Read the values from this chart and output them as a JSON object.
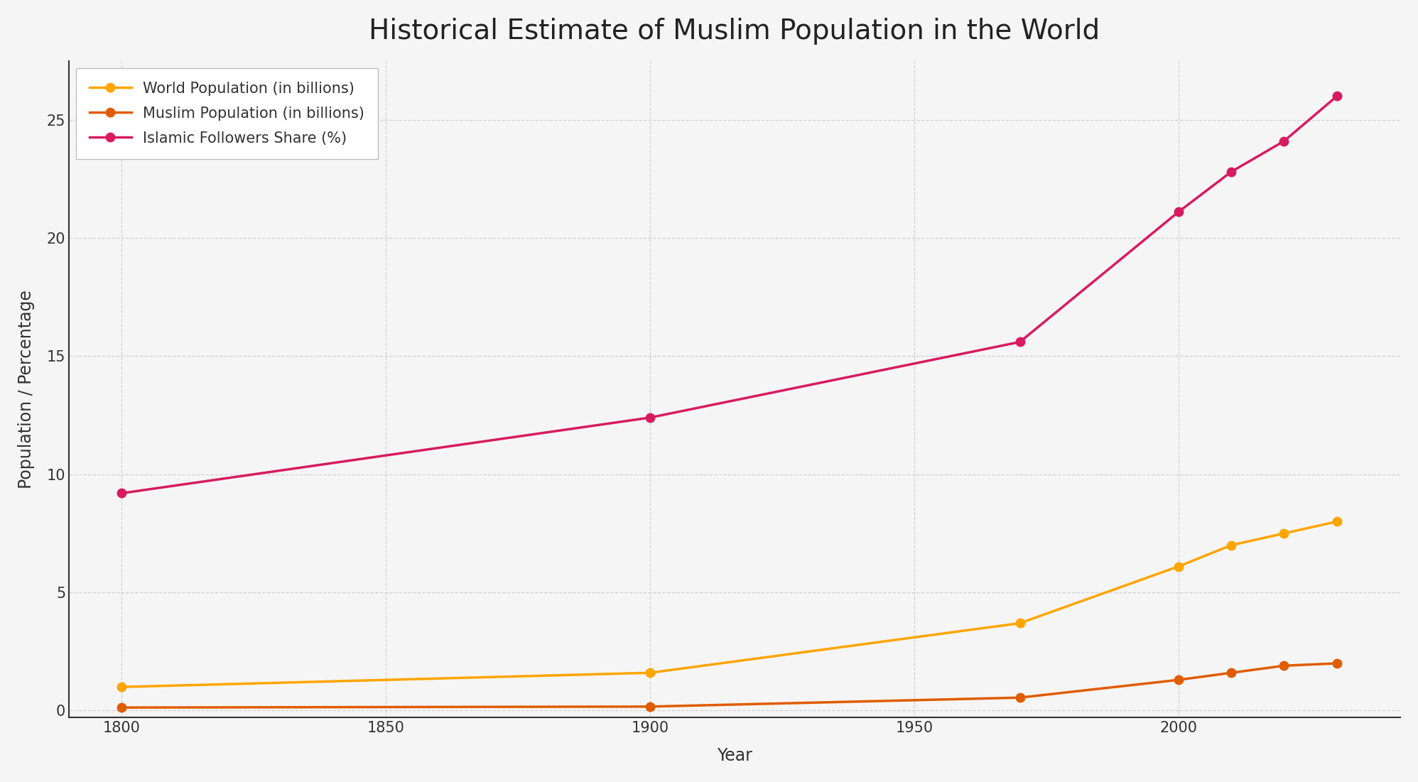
{
  "title": "Historical Estimate of Muslim Population in the World",
  "xlabel": "Year",
  "ylabel": "Population / Percentage",
  "years": [
    1800,
    1900,
    1970,
    2000,
    2010,
    2020,
    2030
  ],
  "world_pop": [
    1.0,
    1.6,
    3.7,
    6.1,
    7.0,
    7.5,
    8.0
  ],
  "muslim_pop": [
    0.13,
    0.17,
    0.55,
    1.3,
    1.6,
    1.9,
    2.0
  ],
  "islamic_share": [
    9.2,
    12.4,
    15.6,
    21.1,
    22.8,
    24.1,
    26.0
  ],
  "world_pop_color": "#FFA500",
  "muslim_pop_color": "#E05C00",
  "islamic_share_color": "#D81B60",
  "background_color": "#F5F5F5",
  "plot_bg_color": "#F5F5F5",
  "grid_color": "#CCCCCC",
  "spine_color": "#333333",
  "tick_color": "#333333",
  "legend_labels": [
    "World Population (in billions)",
    "Muslim Population (in billions)",
    "Islamic Followers Share (%)"
  ],
  "title_fontsize": 28,
  "axis_label_fontsize": 17,
  "tick_fontsize": 15,
  "legend_fontsize": 15,
  "line_width": 2.5,
  "marker_size": 10,
  "ylim": [
    -0.3,
    27.5
  ],
  "xlim": [
    1790,
    2042
  ],
  "xticks": [
    1800,
    1850,
    1900,
    1950,
    2000
  ],
  "yticks": [
    0,
    5,
    10,
    15,
    20,
    25
  ]
}
